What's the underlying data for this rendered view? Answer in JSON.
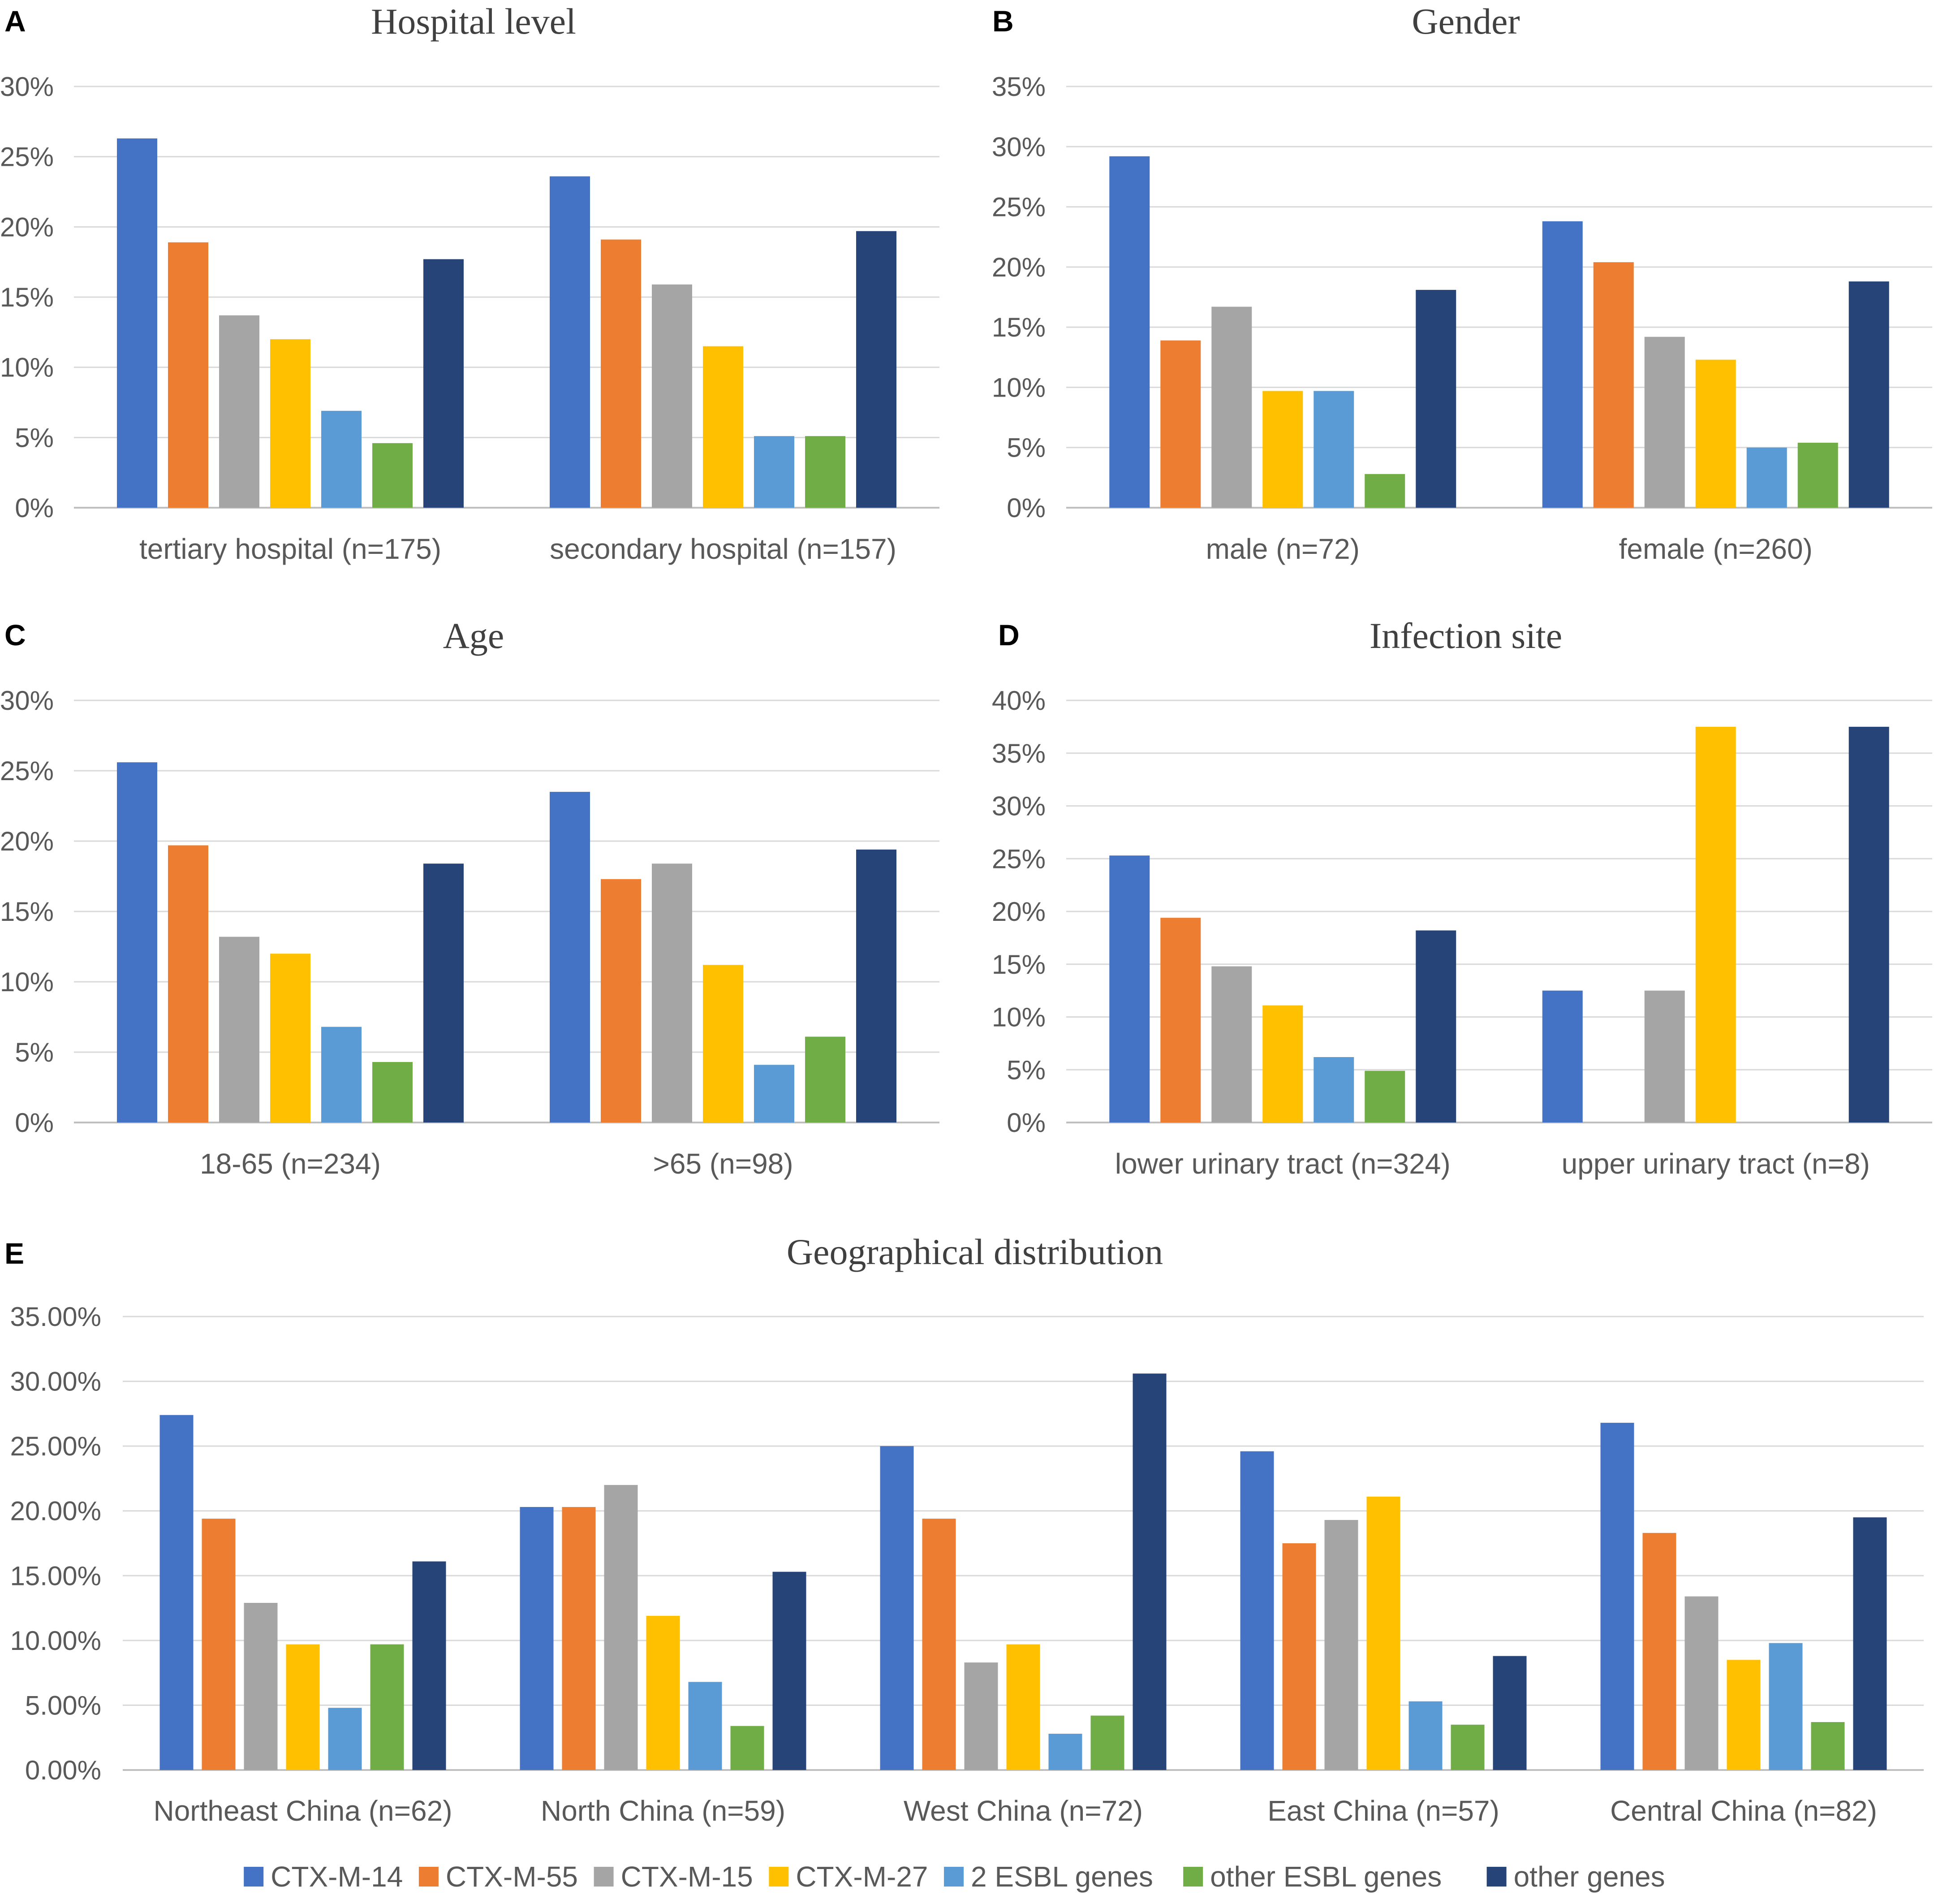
{
  "colors": {
    "CTX-M-14": "#4472C4",
    "CTX-M-55": "#ED7D31",
    "CTX-M-15": "#A5A5A5",
    "CTX-M-27": "#FFC000",
    "2 ESBL genes": "#5B9BD5",
    "other ESBL genes": "#70AD47",
    "other genes": "#264478",
    "grid": "#D9D9D9",
    "axis": "#BFBFBF",
    "text": "#595959",
    "title": "#404040"
  },
  "legend": [
    "CTX-M-14",
    "CTX-M-55",
    "CTX-M-15",
    "CTX-M-27",
    "2 ESBL genes",
    "other ESBL genes",
    "other genes"
  ],
  "chart_data": [
    {
      "panel": "A",
      "type": "bar",
      "title": "Hospital level",
      "xlabel": "",
      "ylabel": "",
      "ylim": [
        0,
        30
      ],
      "yticks": [
        "0%",
        "5%",
        "10%",
        "15%",
        "20%",
        "25%",
        "30%"
      ],
      "categories": [
        "tertiary hospital (n=175)",
        "secondary hospital (n=157)"
      ],
      "series": [
        {
          "name": "CTX-M-14",
          "values": [
            26.3,
            23.6
          ]
        },
        {
          "name": "CTX-M-55",
          "values": [
            18.9,
            19.1
          ]
        },
        {
          "name": "CTX-M-15",
          "values": [
            13.7,
            15.9
          ]
        },
        {
          "name": "CTX-M-27",
          "values": [
            12.0,
            11.5
          ]
        },
        {
          "name": "2 ESBL genes",
          "values": [
            6.9,
            5.1
          ]
        },
        {
          "name": "other ESBL genes",
          "values": [
            4.6,
            5.1
          ]
        },
        {
          "name": "other genes",
          "values": [
            17.7,
            19.7
          ]
        }
      ]
    },
    {
      "panel": "B",
      "type": "bar",
      "title": "Gender",
      "xlabel": "",
      "ylabel": "",
      "ylim": [
        0,
        35
      ],
      "yticks": [
        "0%",
        "5%",
        "10%",
        "15%",
        "20%",
        "25%",
        "30%",
        "35%"
      ],
      "categories": [
        "male (n=72)",
        "female (n=260)"
      ],
      "series": [
        {
          "name": "CTX-M-14",
          "values": [
            29.2,
            23.8
          ]
        },
        {
          "name": "CTX-M-55",
          "values": [
            13.9,
            20.4
          ]
        },
        {
          "name": "CTX-M-15",
          "values": [
            16.7,
            14.2
          ]
        },
        {
          "name": "CTX-M-27",
          "values": [
            9.7,
            12.3
          ]
        },
        {
          "name": "2 ESBL genes",
          "values": [
            9.7,
            5.0
          ]
        },
        {
          "name": "other ESBL genes",
          "values": [
            2.8,
            5.4
          ]
        },
        {
          "name": "other genes",
          "values": [
            18.1,
            18.8
          ]
        }
      ]
    },
    {
      "panel": "C",
      "type": "bar",
      "title": "Age",
      "xlabel": "",
      "ylabel": "",
      "ylim": [
        0,
        30
      ],
      "yticks": [
        "0%",
        "5%",
        "10%",
        "15%",
        "20%",
        "25%",
        "30%"
      ],
      "categories": [
        "18-65 (n=234)",
        ">65 (n=98)"
      ],
      "series": [
        {
          "name": "CTX-M-14",
          "values": [
            25.6,
            23.5
          ]
        },
        {
          "name": "CTX-M-55",
          "values": [
            19.7,
            17.3
          ]
        },
        {
          "name": "CTX-M-15",
          "values": [
            13.2,
            18.4
          ]
        },
        {
          "name": "CTX-M-27",
          "values": [
            12.0,
            11.2
          ]
        },
        {
          "name": "2 ESBL genes",
          "values": [
            6.8,
            4.1
          ]
        },
        {
          "name": "other ESBL genes",
          "values": [
            4.3,
            6.1
          ]
        },
        {
          "name": "other genes",
          "values": [
            18.4,
            19.4
          ]
        }
      ]
    },
    {
      "panel": "D",
      "type": "bar",
      "title": "Infection site",
      "xlabel": "",
      "ylabel": "",
      "ylim": [
        0,
        40
      ],
      "yticks": [
        "0%",
        "5%",
        "10%",
        "15%",
        "20%",
        "25%",
        "30%",
        "35%",
        "40%"
      ],
      "categories": [
        "lower urinary tract (n=324)",
        "upper urinary tract (n=8)"
      ],
      "series": [
        {
          "name": "CTX-M-14",
          "values": [
            25.3,
            12.5
          ]
        },
        {
          "name": "CTX-M-55",
          "values": [
            19.4,
            0
          ]
        },
        {
          "name": "CTX-M-15",
          "values": [
            14.8,
            12.5
          ]
        },
        {
          "name": "CTX-M-27",
          "values": [
            11.1,
            37.5
          ]
        },
        {
          "name": "2 ESBL genes",
          "values": [
            6.2,
            0
          ]
        },
        {
          "name": "other ESBL genes",
          "values": [
            4.9,
            0
          ]
        },
        {
          "name": "other genes",
          "values": [
            18.2,
            37.5
          ]
        }
      ]
    },
    {
      "panel": "E",
      "type": "bar",
      "title": "Geographical distribution",
      "xlabel": "",
      "ylabel": "",
      "ylim": [
        0,
        35
      ],
      "yticks": [
        "0.00%",
        "5.00%",
        "10.00%",
        "15.00%",
        "20.00%",
        "25.00%",
        "30.00%",
        "35.00%"
      ],
      "categories": [
        "Northeast China (n=62)",
        "North China (n=59)",
        "West China (n=72)",
        "East China (n=57)",
        "Central China (n=82)"
      ],
      "series": [
        {
          "name": "CTX-M-14",
          "values": [
            27.4,
            20.3,
            25.0,
            24.6,
            26.8
          ]
        },
        {
          "name": "CTX-M-55",
          "values": [
            19.4,
            20.3,
            19.4,
            17.5,
            18.3
          ]
        },
        {
          "name": "CTX-M-15",
          "values": [
            12.9,
            22.0,
            8.3,
            19.3,
            13.4
          ]
        },
        {
          "name": "CTX-M-27",
          "values": [
            9.7,
            11.9,
            9.7,
            21.1,
            8.5
          ]
        },
        {
          "name": "2 ESBL genes",
          "values": [
            4.8,
            6.8,
            2.8,
            5.3,
            9.8
          ]
        },
        {
          "name": "other ESBL genes",
          "values": [
            9.7,
            3.4,
            4.2,
            3.5,
            3.7
          ]
        },
        {
          "name": "other genes",
          "values": [
            16.1,
            15.3,
            30.6,
            8.8,
            19.5
          ]
        }
      ]
    }
  ]
}
